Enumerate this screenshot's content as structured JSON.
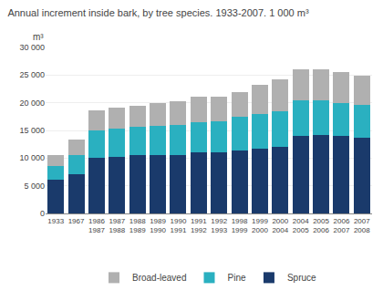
{
  "chart_data": {
    "type": "bar",
    "stacked": true,
    "title": "Annual increment inside bark, by tree species. 1933-2007. 1 000 m³",
    "ylabel": "m³",
    "categories": [
      "1933",
      "1967",
      "1986\n1987",
      "1987\n1988",
      "1988\n1989",
      "1989\n1990",
      "1990\n1991",
      "1991\n1992",
      "1992\n1993",
      "1998\n1999",
      "1999\n2000",
      "2000\n2004",
      "2004\n2005",
      "2005\n2006",
      "2006\n2007",
      "2007\n2008"
    ],
    "series": [
      {
        "name": "Spruce",
        "color": "#1a3a6b",
        "values": [
          6100,
          7100,
          10000,
          10200,
          10500,
          10500,
          10600,
          11000,
          11100,
          11300,
          11700,
          12000,
          14000,
          14100,
          14000,
          13700
        ]
      },
      {
        "name": "Pine",
        "color": "#2ab0c0",
        "values": [
          2500,
          3500,
          5000,
          5100,
          5200,
          5300,
          5400,
          5500,
          5600,
          6100,
          6300,
          6500,
          6400,
          6400,
          6000,
          5900
        ]
      },
      {
        "name": "Broad-leaved",
        "color": "#b0b0b0",
        "values": [
          2000,
          2700,
          3700,
          3900,
          3800,
          4100,
          4200,
          4600,
          4400,
          4600,
          5200,
          5700,
          5600,
          5600,
          5500,
          5300
        ]
      }
    ],
    "ylim": [
      0,
      30000
    ],
    "yticks": [
      0,
      {
        "value": 5000,
        "label": "5 000"
      },
      {
        "value": 10000,
        "label": "10 000"
      },
      {
        "value": 15000,
        "label": "15 000"
      },
      {
        "value": 20000,
        "label": "20 000"
      },
      {
        "value": 25000,
        "label": "25 000"
      },
      {
        "value": 30000,
        "label": "30 000"
      }
    ],
    "grid": true,
    "legend": "bottom"
  }
}
